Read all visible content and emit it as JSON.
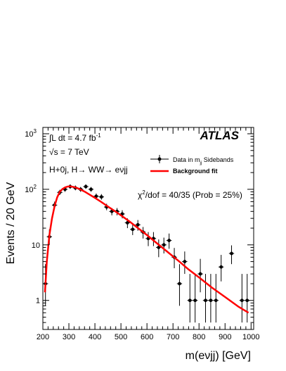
{
  "chart_data": {
    "type": "scatter",
    "title": "",
    "xlabel": "m(eνjj) [GeV]",
    "ylabel": "Events / 20 GeV",
    "xlim": [
      200,
      1010
    ],
    "ylim": [
      0.3,
      1300
    ],
    "yscale": "log",
    "grid": false,
    "legend_position": "top-right",
    "x_ticks": [
      200,
      300,
      400,
      500,
      600,
      700,
      800,
      900,
      1000
    ],
    "y_ticks": [
      {
        "value": 1,
        "mantissa": "1",
        "exp": ""
      },
      {
        "value": 10,
        "mantissa": "10",
        "exp": ""
      },
      {
        "value": 100,
        "mantissa": "10",
        "exp": "2"
      },
      {
        "value": 1000,
        "mantissa": "10",
        "exp": "3"
      }
    ],
    "annotations": {
      "brand": "ATLAS",
      "lumi_prefix": "∫L dt = 4.7 fb",
      "lumi_exp": "-1",
      "energy": "√s = 7 TeV",
      "channel": "H+0j, H→ WW→ eνjj",
      "fit_chi_prefix": "χ",
      "fit_chi_exp": "2",
      "fit_chi_rest": "/dof = 40/35 (Prob = 25%)"
    },
    "series": [
      {
        "name": "Data in mⱼⱼ Sidebands",
        "legend_main": "Data in m",
        "legend_sub": "jj",
        "legend_rest": " Sidebands",
        "color": "#000000",
        "marker": "circle",
        "points": [
          {
            "x": 210,
            "y": 2,
            "lo": 0.8,
            "hi": 4.5
          },
          {
            "x": 225,
            "y": 14,
            "lo": 10,
            "hi": 19
          },
          {
            "x": 245,
            "y": 52,
            "lo": 45,
            "hi": 60
          },
          {
            "x": 265,
            "y": 88,
            "lo": 79,
            "hi": 98
          },
          {
            "x": 285,
            "y": 100,
            "lo": 90,
            "hi": 110
          },
          {
            "x": 305,
            "y": 112,
            "lo": 102,
            "hi": 123
          },
          {
            "x": 325,
            "y": 106,
            "lo": 96,
            "hi": 117
          },
          {
            "x": 345,
            "y": 100,
            "lo": 90,
            "hi": 110
          },
          {
            "x": 365,
            "y": 112,
            "lo": 102,
            "hi": 123
          },
          {
            "x": 385,
            "y": 100,
            "lo": 90,
            "hi": 110
          },
          {
            "x": 405,
            "y": 75,
            "lo": 66,
            "hi": 84
          },
          {
            "x": 425,
            "y": 73,
            "lo": 65,
            "hi": 82
          },
          {
            "x": 445,
            "y": 48,
            "lo": 42,
            "hi": 55
          },
          {
            "x": 465,
            "y": 40,
            "lo": 34,
            "hi": 46
          },
          {
            "x": 485,
            "y": 40,
            "lo": 34,
            "hi": 46
          },
          {
            "x": 505,
            "y": 36,
            "lo": 30,
            "hi": 42
          },
          {
            "x": 525,
            "y": 25,
            "lo": 20,
            "hi": 30
          },
          {
            "x": 545,
            "y": 19,
            "lo": 15,
            "hi": 24
          },
          {
            "x": 565,
            "y": 23,
            "lo": 18,
            "hi": 28
          },
          {
            "x": 585,
            "y": 17,
            "lo": 13,
            "hi": 21
          },
          {
            "x": 605,
            "y": 13,
            "lo": 9.5,
            "hi": 17
          },
          {
            "x": 625,
            "y": 13,
            "lo": 9.5,
            "hi": 17
          },
          {
            "x": 645,
            "y": 9,
            "lo": 6,
            "hi": 12.5
          },
          {
            "x": 665,
            "y": 10,
            "lo": 7,
            "hi": 13.5
          },
          {
            "x": 685,
            "y": 12,
            "lo": 8.5,
            "hi": 16
          },
          {
            "x": 705,
            "y": 6,
            "lo": 3.8,
            "hi": 8.8
          },
          {
            "x": 725,
            "y": 2,
            "lo": 0.8,
            "hi": 4.5
          },
          {
            "x": 745,
            "y": 5,
            "lo": 3,
            "hi": 7.6
          },
          {
            "x": 765,
            "y": 1,
            "lo": 0.4,
            "hi": 3
          },
          {
            "x": 785,
            "y": 1,
            "lo": 0.4,
            "hi": 3
          },
          {
            "x": 805,
            "y": 3,
            "lo": 1.4,
            "hi": 5.6
          },
          {
            "x": 825,
            "y": 1,
            "lo": 0.4,
            "hi": 3
          },
          {
            "x": 845,
            "y": 1,
            "lo": 0.4,
            "hi": 3
          },
          {
            "x": 865,
            "y": 1,
            "lo": 0.4,
            "hi": 3
          },
          {
            "x": 885,
            "y": 4,
            "lo": 2.2,
            "hi": 6.6
          },
          {
            "x": 925,
            "y": 7,
            "lo": 4.5,
            "hi": 9.8
          },
          {
            "x": 965,
            "y": 1,
            "lo": 0.4,
            "hi": 3
          },
          {
            "x": 985,
            "y": 1,
            "lo": 0.4,
            "hi": 3
          }
        ]
      },
      {
        "name": "Background fit",
        "color": "#ff0000",
        "type": "line",
        "x": [
          208,
          215,
          225,
          235,
          245,
          255,
          265,
          275,
          285,
          295,
          305,
          315,
          325,
          335,
          345,
          360,
          380,
          400,
          425,
          450,
          475,
          500,
          530,
          560,
          600,
          640,
          680,
          720,
          760,
          800,
          850,
          900,
          950,
          990
        ],
        "y": [
          1.4,
          5,
          15,
          30,
          50,
          72,
          90,
          101,
          108,
          112,
          113,
          111,
          108,
          104,
          99,
          91,
          80,
          70,
          59,
          49,
          41,
          34,
          27,
          21,
          15,
          10.5,
          7.4,
          5.2,
          3.6,
          2.6,
          1.7,
          1.15,
          0.78,
          0.6
        ]
      }
    ]
  }
}
